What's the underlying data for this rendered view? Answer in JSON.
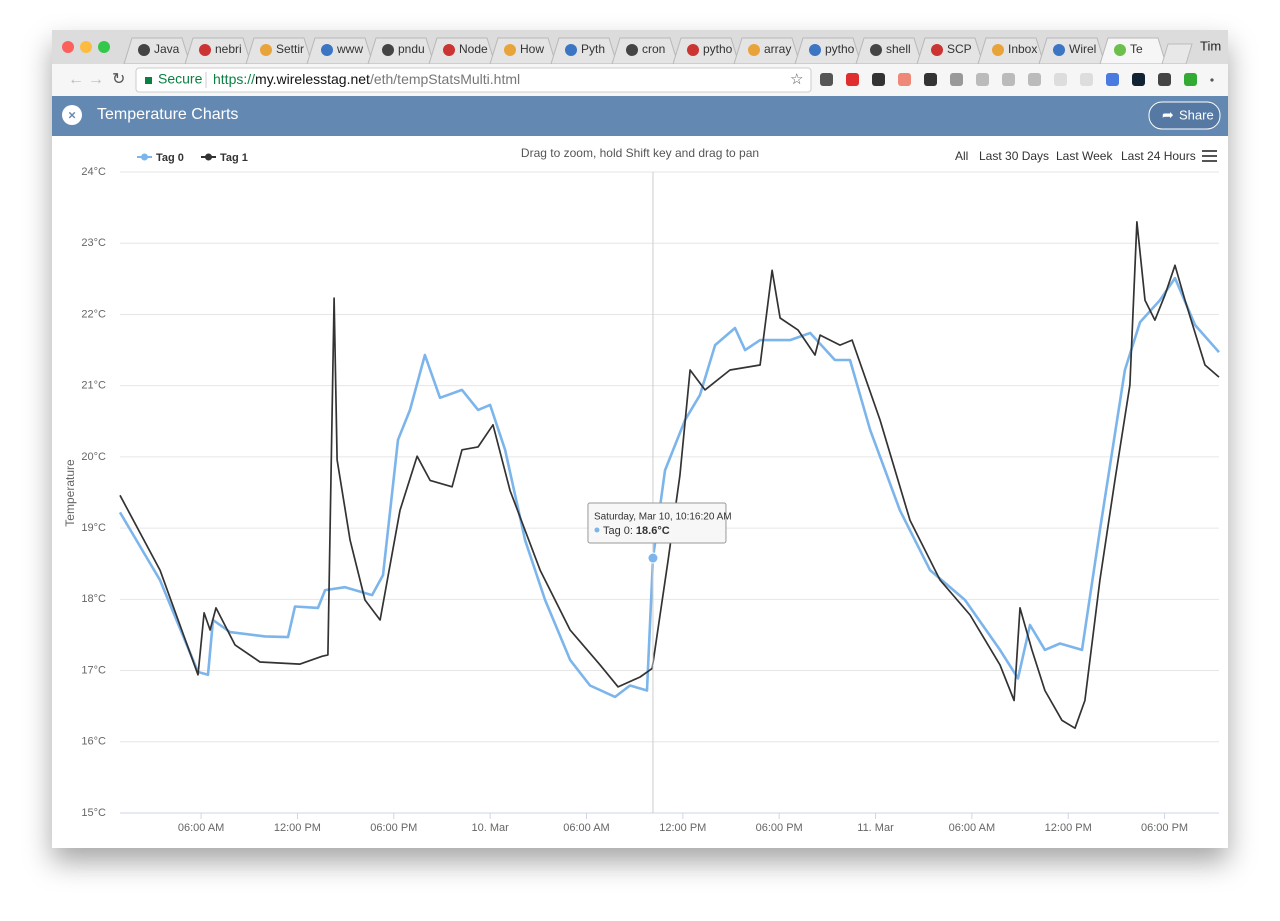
{
  "browser": {
    "tabs": [
      "Java",
      "nebri",
      "Settir",
      "www",
      "pndu",
      "Node",
      "How",
      "Pyth",
      "cron",
      "pytho",
      "array",
      "pytho",
      "shell",
      "SCP",
      "Inbox",
      "Wirel",
      "Te"
    ],
    "profile": "Tim",
    "address": {
      "secure": "Secure",
      "scheme": "https://",
      "host": "my.wirelesstag.net",
      "path": "/eth/tempStatsMulti.html"
    }
  },
  "header": {
    "title": "Temperature Charts",
    "share": "Share"
  },
  "toolbar": {
    "hint": "Drag to zoom, hold Shift key and drag to pan",
    "ranges": [
      "All",
      "Last 30 Days",
      "Last Week",
      "Last 24 Hours"
    ]
  },
  "chart_data": {
    "type": "line",
    "y_label": "Temperature",
    "grid": true,
    "xlim": [
      0.95,
      69.39
    ],
    "xticks": [
      {
        "value": 6,
        "label": "06:00 AM"
      },
      {
        "value": 12,
        "label": "12:00 PM"
      },
      {
        "value": 18,
        "label": "06:00 PM"
      },
      {
        "value": 24,
        "label": "10. Mar"
      },
      {
        "value": 30,
        "label": "06:00 AM"
      },
      {
        "value": 36,
        "label": "12:00 PM"
      },
      {
        "value": 42,
        "label": "06:00 PM"
      },
      {
        "value": 48,
        "label": "11. Mar"
      },
      {
        "value": 54,
        "label": "06:00 AM"
      },
      {
        "value": 60,
        "label": "12:00 PM"
      },
      {
        "value": 66,
        "label": "06:00 PM"
      }
    ],
    "ylim": [
      15,
      24
    ],
    "yticks": [
      {
        "value": 15,
        "label": "15°C"
      },
      {
        "value": 16,
        "label": "16°C"
      },
      {
        "value": 17,
        "label": "17°C"
      },
      {
        "value": 18,
        "label": "18°C"
      },
      {
        "value": 19,
        "label": "19°C"
      },
      {
        "value": 20,
        "label": "20°C"
      },
      {
        "value": 21,
        "label": "21°C"
      },
      {
        "value": 22,
        "label": "22°C"
      },
      {
        "value": 23,
        "label": "23°C"
      },
      {
        "value": 24,
        "label": "24°C"
      }
    ],
    "series": [
      {
        "name": "Tag 0",
        "color": "#7cb5ec",
        "x": [
          0.95,
          3.44,
          5.81,
          6.43,
          6.74,
          7.8,
          9.98,
          11.41,
          11.85,
          13.28,
          13.72,
          14.97,
          16.65,
          17.33,
          18.26,
          19.01,
          19.94,
          20.88,
          22.25,
          23.25,
          24.0,
          24.93,
          26.18,
          27.42,
          28.98,
          30.22,
          31.78,
          32.71,
          33.77,
          34.14,
          34.89,
          36.14,
          37.07,
          38.01,
          39.25,
          39.88,
          40.81,
          42.68,
          43.93,
          45.47,
          46.41,
          47.66,
          49.52,
          51.39,
          53.57,
          55.75,
          56.87,
          57.62,
          58.55,
          59.49,
          60.86,
          61.97,
          63.53,
          64.47,
          65.71,
          66.65,
          67.9,
          69.39
        ],
        "values": [
          19.22,
          18.27,
          16.98,
          16.94,
          17.71,
          17.54,
          17.48,
          17.47,
          17.9,
          17.88,
          18.13,
          18.17,
          18.06,
          18.34,
          20.24,
          20.66,
          21.43,
          20.83,
          20.94,
          20.66,
          20.73,
          20.1,
          18.83,
          17.99,
          17.15,
          16.79,
          16.63,
          16.79,
          16.72,
          18.58,
          19.81,
          20.52,
          20.87,
          21.57,
          21.81,
          21.5,
          21.64,
          21.64,
          21.74,
          21.36,
          21.36,
          20.38,
          19.25,
          18.41,
          17.99,
          17.29,
          16.89,
          17.64,
          17.29,
          17.38,
          17.29,
          18.97,
          21.22,
          21.89,
          22.2,
          22.51,
          21.85,
          21.47
        ]
      },
      {
        "name": "Tag 1",
        "color": "#333333",
        "x": [
          0.95,
          3.44,
          5.81,
          6.19,
          6.56,
          6.93,
          8.11,
          9.67,
          12.16,
          13.53,
          13.9,
          14.28,
          14.47,
          15.28,
          16.21,
          17.15,
          18.39,
          19.45,
          20.26,
          21.63,
          22.25,
          23.25,
          24.18,
          25.24,
          27.11,
          28.98,
          30.85,
          31.97,
          33.34,
          34.09,
          35.08,
          35.82,
          36.45,
          37.38,
          38.94,
          40.81,
          41.56,
          42.06,
          43.18,
          44.23,
          44.55,
          45.79,
          46.54,
          48.28,
          50.15,
          52.02,
          53.89,
          55.75,
          56.63,
          57.0,
          57.74,
          58.55,
          59.61,
          60.42,
          61.04,
          61.97,
          62.91,
          63.84,
          64.28,
          64.78,
          65.4,
          66.02,
          66.65,
          67.27,
          68.52,
          69.39
        ],
        "values": [
          19.46,
          18.41,
          16.94,
          17.81,
          17.57,
          17.88,
          17.36,
          17.12,
          17.09,
          17.2,
          17.22,
          22.23,
          19.96,
          18.83,
          17.99,
          17.71,
          19.25,
          20.01,
          19.67,
          19.58,
          20.1,
          20.14,
          20.45,
          19.53,
          18.41,
          17.57,
          17.08,
          16.77,
          16.91,
          17.03,
          18.55,
          19.74,
          21.22,
          20.94,
          21.22,
          21.29,
          22.62,
          21.95,
          21.78,
          21.43,
          21.71,
          21.57,
          21.64,
          20.52,
          19.11,
          18.27,
          17.78,
          17.08,
          16.58,
          17.88,
          17.29,
          16.72,
          16.3,
          16.19,
          16.58,
          18.27,
          19.67,
          21.01,
          23.3,
          22.2,
          21.92,
          22.27,
          22.69,
          22.2,
          21.29,
          21.12
        ]
      }
    ],
    "tooltip": {
      "date": "Saturday, Mar 10, 10:16:20 AM",
      "label": "Tag 0:",
      "value_label": "18.6°C"
    }
  }
}
